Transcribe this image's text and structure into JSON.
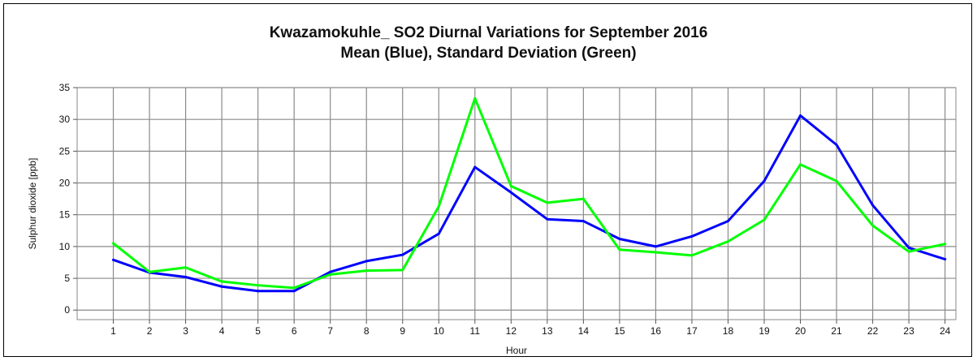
{
  "chart_data": {
    "type": "line",
    "title": "Kwazamokuhle_  SO2 Diurnal Variations for September 2016",
    "subtitle": "Mean (Blue), Standard Deviation (Green)",
    "xlabel": "Hour",
    "ylabel": "Sulphur dioxide  [ppb]",
    "x": [
      1,
      2,
      3,
      4,
      5,
      6,
      7,
      8,
      9,
      10,
      11,
      12,
      13,
      14,
      15,
      16,
      17,
      18,
      19,
      20,
      21,
      22,
      23,
      24
    ],
    "xlim": [
      0,
      24.3
    ],
    "ylim": [
      -1.5,
      35
    ],
    "yticks": [
      0,
      5,
      10,
      15,
      20,
      25,
      30,
      35
    ],
    "grid": true,
    "series": [
      {
        "color": "#0000ff",
        "values": [
          7.9,
          5.9,
          5.2,
          3.7,
          3.0,
          3.0,
          6.0,
          7.7,
          8.7,
          12.0,
          22.5,
          18.5,
          14.3,
          14.0,
          11.2,
          10.0,
          11.6,
          14.0,
          20.3,
          30.6,
          26.0,
          16.5,
          9.8,
          8.0
        ]
      },
      {
        "color": "#00ff00",
        "values": [
          10.5,
          6.0,
          6.7,
          4.5,
          3.9,
          3.5,
          5.6,
          6.2,
          6.3,
          16.3,
          33.3,
          19.5,
          16.9,
          17.5,
          9.5,
          9.1,
          8.6,
          10.8,
          14.2,
          22.9,
          20.3,
          13.3,
          9.2,
          10.4
        ]
      }
    ]
  }
}
